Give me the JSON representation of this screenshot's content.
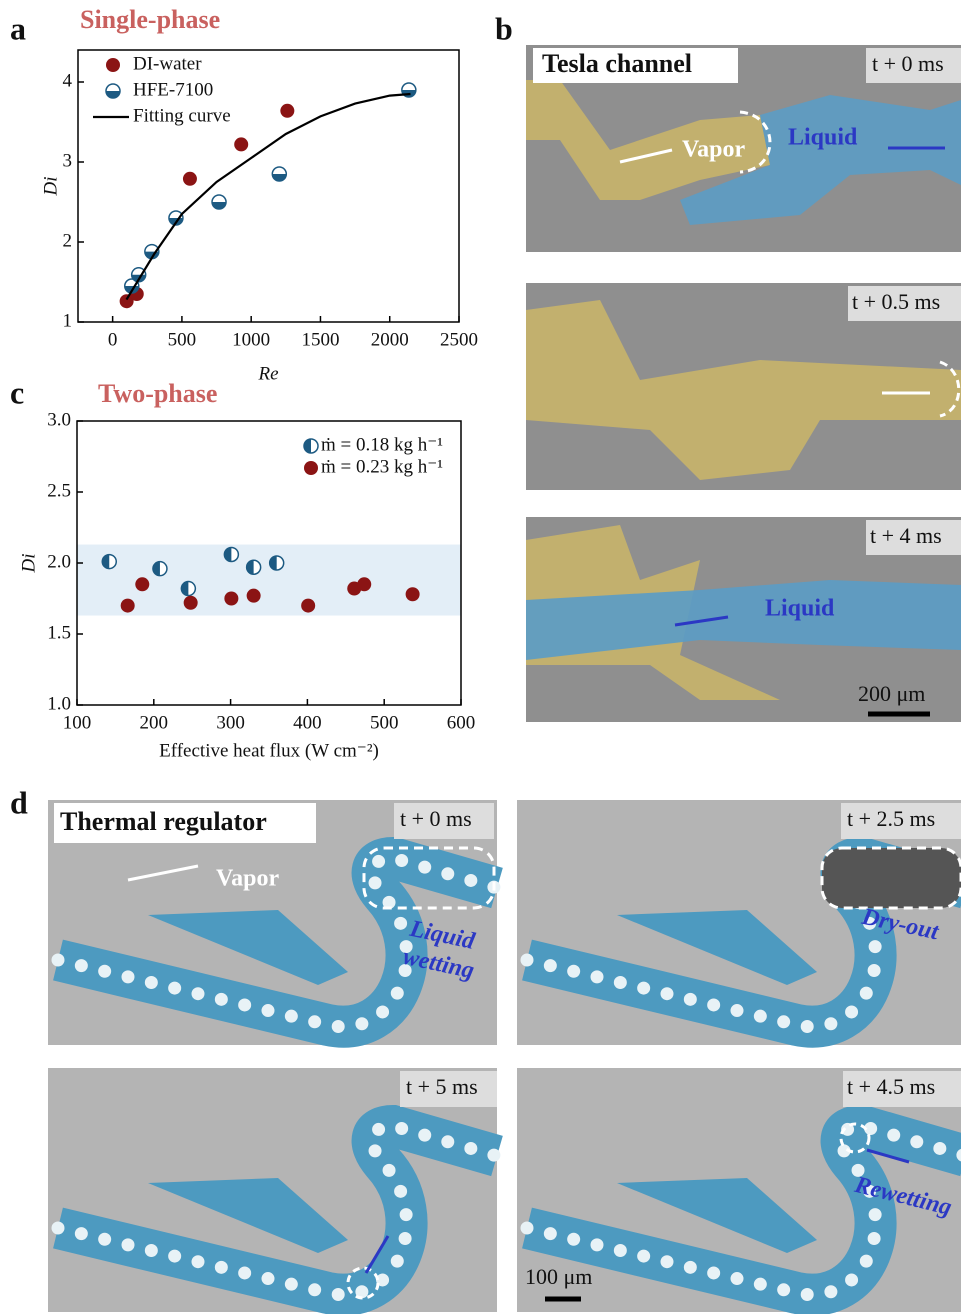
{
  "panel_labels": [
    "a",
    "b",
    "c",
    "d"
  ],
  "chart_data": [
    {
      "type": "scatter",
      "title": "Single-phase",
      "x_label": "Re",
      "y_label": "Di",
      "xlim": [
        -250,
        2500
      ],
      "xticks": [
        0,
        500,
        1000,
        1500,
        2000,
        2500
      ],
      "ylim": [
        1,
        4.4
      ],
      "yticks": [
        1,
        2,
        3,
        4
      ],
      "legend": "upper left",
      "series": [
        {
          "name": "DI-water",
          "color": "#8b1414",
          "marker": "filled",
          "x": [
            101,
            174,
            558,
            928,
            1261
          ],
          "values": [
            1.26,
            1.35,
            2.79,
            3.22,
            3.64
          ]
        },
        {
          "name": "HFE-7100",
          "color": "#1d5a82",
          "marker": "half-bottom",
          "x": [
            138,
            188,
            283,
            457,
            768,
            1203,
            2138
          ],
          "values": [
            1.45,
            1.59,
            1.88,
            2.3,
            2.5,
            2.85,
            3.9
          ]
        },
        {
          "name": "Fitting curve",
          "color": "#000000",
          "marker": "line",
          "x": [
            100,
            300,
            500,
            750,
            1000,
            1250,
            1500,
            1750,
            2000,
            2150
          ],
          "values": [
            1.28,
            1.85,
            2.35,
            2.75,
            3.05,
            3.35,
            3.57,
            3.73,
            3.83,
            3.85
          ]
        }
      ]
    },
    {
      "type": "scatter",
      "title": "Two-phase",
      "x_label": "Effective heat flux (W cm⁻²)",
      "y_label": "Di",
      "xlim": [
        100,
        600
      ],
      "xticks": [
        100,
        200,
        300,
        400,
        500,
        600
      ],
      "ylim": [
        1.0,
        3.0
      ],
      "yticks": [
        {
          "value": 1.0,
          "label": "1.0"
        },
        {
          "value": 1.5,
          "label": "1.5"
        },
        {
          "value": 2.0,
          "label": "2.0"
        },
        {
          "value": 2.5,
          "label": "2.5"
        },
        {
          "value": 3.0,
          "label": "3.0"
        }
      ],
      "legend": "upper right",
      "band": [
        1.63,
        2.13
      ],
      "band_color": "#e3eef7",
      "series": [
        {
          "name": "ṁ = 0.18 kg h⁻¹",
          "color": "#1d5a82",
          "marker": "half-left",
          "x": [
            142,
            208,
            245,
            301,
            330,
            360
          ],
          "values": [
            2.01,
            1.96,
            1.82,
            2.06,
            1.97,
            2.0
          ]
        },
        {
          "name": "ṁ = 0.23 kg h⁻¹",
          "color": "#8b1414",
          "marker": "filled",
          "x": [
            166,
            185,
            248,
            301,
            330,
            401,
            461,
            474,
            537
          ],
          "values": [
            1.7,
            1.85,
            1.72,
            1.75,
            1.77,
            1.7,
            1.82,
            1.85,
            1.78
          ]
        }
      ]
    }
  ],
  "panel_b": {
    "title": "Tesla channel",
    "frames": [
      {
        "time": "t + 0 ms",
        "labels": [
          "Vapor",
          "Liquid"
        ]
      },
      {
        "time": "t + 0.5 ms"
      },
      {
        "time": "t + 4 ms",
        "labels": [
          "Liquid"
        ]
      }
    ],
    "scale_bar": "200 μm"
  },
  "panel_d": {
    "title": "Thermal regulator",
    "frames": [
      {
        "time": "t + 0 ms",
        "labels": [
          "Vapor",
          "Liquid",
          "wetting"
        ]
      },
      {
        "time": "t + 2.5 ms",
        "labels": [
          "Dry-out"
        ]
      },
      {
        "time": "t + 5 ms"
      },
      {
        "time": "t + 4.5 ms",
        "labels": [
          "Rewetting"
        ]
      }
    ],
    "scale_bar": "100 μm"
  }
}
